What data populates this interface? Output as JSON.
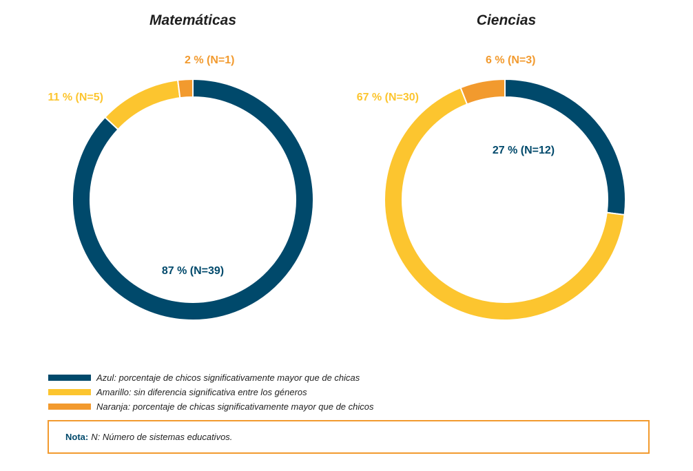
{
  "colors": {
    "blue": "#00496b",
    "yellow": "#fcc52f",
    "orange": "#f29a2e"
  },
  "chart_data": [
    {
      "type": "pie",
      "variant": "donut",
      "title": "Matemáticas",
      "slices": [
        {
          "key": "blue",
          "value": 87,
          "label": "87 % (N=39)"
        },
        {
          "key": "yellow",
          "value": 11,
          "label": "11 % (N=5)"
        },
        {
          "key": "orange",
          "value": 2,
          "label": "2 % (N=1)"
        }
      ]
    },
    {
      "type": "pie",
      "variant": "donut",
      "title": "Ciencias",
      "slices": [
        {
          "key": "blue",
          "value": 27,
          "label": "27 % (N=12)"
        },
        {
          "key": "yellow",
          "value": 67,
          "label": "67 % (N=30)"
        },
        {
          "key": "orange",
          "value": 6,
          "label": "6 % (N=3)"
        }
      ]
    }
  ],
  "legend": [
    {
      "key": "blue",
      "text": "Azul: porcentaje de chicos significativamente mayor que de chicas"
    },
    {
      "key": "yellow",
      "text": "Amarillo: sin diferencia significativa entre los géneros"
    },
    {
      "key": "orange",
      "text": "Naranja: porcentaje de chicas significativamente mayor que de chicos"
    }
  ],
  "note": {
    "label": "Nota:",
    "text": "N: Número de sistemas educativos."
  }
}
